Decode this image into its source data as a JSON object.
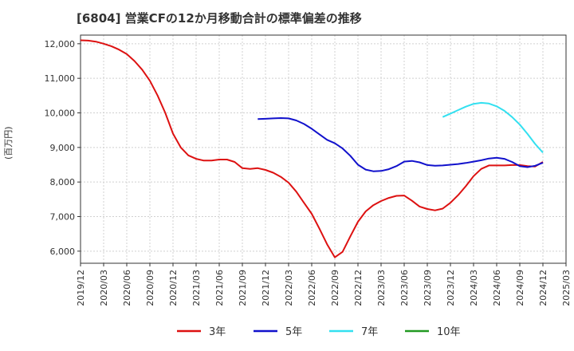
{
  "chart_data": {
    "type": "line",
    "title": "[6804]  営業CFの12か月移動合計の標準偏差の推移",
    "ylabel": "(百万円)",
    "xlabel": "",
    "ylim": [
      5650,
      12250
    ],
    "y_ticks": [
      "6,000",
      "7,000",
      "8,000",
      "9,000",
      "10,000",
      "11,000",
      "12,000"
    ],
    "y_tick_values": [
      6000,
      7000,
      8000,
      9000,
      10000,
      11000,
      12000
    ],
    "x_ticks": [
      "2019/12",
      "2020/03",
      "2020/06",
      "2020/09",
      "2020/12",
      "2021/03",
      "2021/06",
      "2021/09",
      "2021/12",
      "2022/03",
      "2022/06",
      "2022/09",
      "2022/12",
      "2023/03",
      "2023/06",
      "2023/09",
      "2023/12",
      "2024/03",
      "2024/06",
      "2024/09",
      "2024/12",
      "2025/03"
    ],
    "grid": true,
    "legend_position": "bottom",
    "series": [
      {
        "name": "3年",
        "color": "#dd1111",
        "start": "2019/12",
        "values": [
          12100,
          12090,
          12060,
          12000,
          11930,
          11830,
          11700,
          11500,
          11250,
          10930,
          10500,
          10000,
          9400,
          9000,
          8770,
          8670,
          8620,
          8620,
          8650,
          8650,
          8580,
          8400,
          8380,
          8400,
          8350,
          8270,
          8150,
          7980,
          7720,
          7400,
          7080,
          6650,
          6200,
          5820,
          5980,
          6420,
          6850,
          7150,
          7330,
          7450,
          7540,
          7600,
          7610,
          7460,
          7290,
          7220,
          7180,
          7230,
          7400,
          7620,
          7880,
          8170,
          8380,
          8480,
          8480,
          8480,
          8490,
          8490,
          8460,
          8450,
          8580
        ]
      },
      {
        "name": "5年",
        "color": "#1111cc",
        "start": "2021/11",
        "values": [
          9820,
          9830,
          9840,
          9850,
          9840,
          9780,
          9680,
          9540,
          9380,
          9220,
          9120,
          8970,
          8760,
          8500,
          8360,
          8310,
          8320,
          8370,
          8460,
          8590,
          8610,
          8570,
          8490,
          8470,
          8480,
          8500,
          8520,
          8550,
          8590,
          8630,
          8680,
          8700,
          8670,
          8580,
          8460,
          8430,
          8470,
          8560
        ]
      },
      {
        "name": "7年",
        "color": "#33e0f0",
        "start": "2023/11",
        "values": [
          9880,
          9980,
          10080,
          10180,
          10260,
          10290,
          10270,
          10190,
          10060,
          9880,
          9660,
          9390,
          9100,
          8850
        ]
      },
      {
        "name": "10年",
        "color": "#229922",
        "start": "",
        "values": []
      }
    ]
  }
}
